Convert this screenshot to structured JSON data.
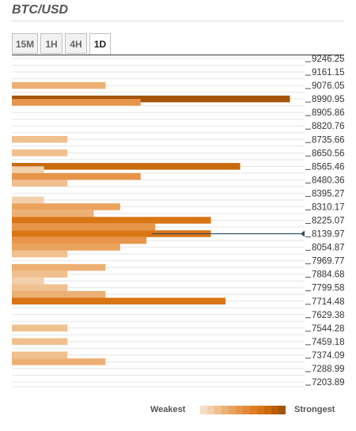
{
  "header": {
    "title": "BTC/USD",
    "tabs": [
      {
        "label": "15M",
        "active": false
      },
      {
        "label": "1H",
        "active": false
      },
      {
        "label": "4H",
        "active": false
      },
      {
        "label": "1D",
        "active": true
      }
    ]
  },
  "legend": {
    "weakest_label": "Weakest",
    "strongest_label": "Strongest",
    "scale_colors": [
      "#f7dfc6",
      "#f3d0ac",
      "#f0c08f",
      "#edb074",
      "#eaa35d",
      "#e7954a",
      "#e48a37",
      "#e07f26",
      "#d97514",
      "#c96a0e",
      "#b65e0a",
      "#a3540a"
    ]
  },
  "chart_data": {
    "type": "bar",
    "orientation": "horizontal",
    "title": "BTC/USD",
    "price_levels": [
      "9246.25",
      "9161.15",
      "9076.05",
      "8990.95",
      "8905.86",
      "8820.76",
      "8735.66",
      "8650.56",
      "8565.46",
      "8480.36",
      "8395.27",
      "8310.17",
      "8225.07",
      "8139.97",
      "8054.87",
      "7969.77",
      "7884.68",
      "7799.58",
      "7714.48",
      "7629.38",
      "7544.28",
      "7459.18",
      "7374.09",
      "7288.99",
      "7203.89"
    ],
    "ylim": [
      7203.89,
      9246.25
    ],
    "xlim": [
      0,
      100
    ],
    "current_price": 8139.97,
    "bars": [
      {
        "price": 9076.05,
        "strength": 32
      },
      {
        "price": 8990.95,
        "strength": 95
      },
      {
        "price": 8969.7,
        "strength": 44
      },
      {
        "price": 8735.66,
        "strength": 19
      },
      {
        "price": 8650.56,
        "strength": 19
      },
      {
        "price": 8565.46,
        "strength": 78
      },
      {
        "price": 8544.2,
        "strength": 11
      },
      {
        "price": 8501.6,
        "strength": 44
      },
      {
        "price": 8459.1,
        "strength": 19
      },
      {
        "price": 8352.7,
        "strength": 11
      },
      {
        "price": 8310.17,
        "strength": 37
      },
      {
        "price": 8267.6,
        "strength": 28
      },
      {
        "price": 8225.07,
        "strength": 68
      },
      {
        "price": 8182.5,
        "strength": 49
      },
      {
        "price": 8139.97,
        "strength": 68
      },
      {
        "price": 8097.4,
        "strength": 46
      },
      {
        "price": 8054.87,
        "strength": 37
      },
      {
        "price": 8012.3,
        "strength": 19
      },
      {
        "price": 7927.2,
        "strength": 32
      },
      {
        "price": 7884.68,
        "strength": 19
      },
      {
        "price": 7842.1,
        "strength": 11
      },
      {
        "price": 7799.58,
        "strength": 19
      },
      {
        "price": 7757.0,
        "strength": 32
      },
      {
        "price": 7714.48,
        "strength": 73
      },
      {
        "price": 7544.28,
        "strength": 19
      },
      {
        "price": 7459.18,
        "strength": 19
      },
      {
        "price": 7374.09,
        "strength": 19
      },
      {
        "price": 7331.5,
        "strength": 32
      }
    ]
  }
}
